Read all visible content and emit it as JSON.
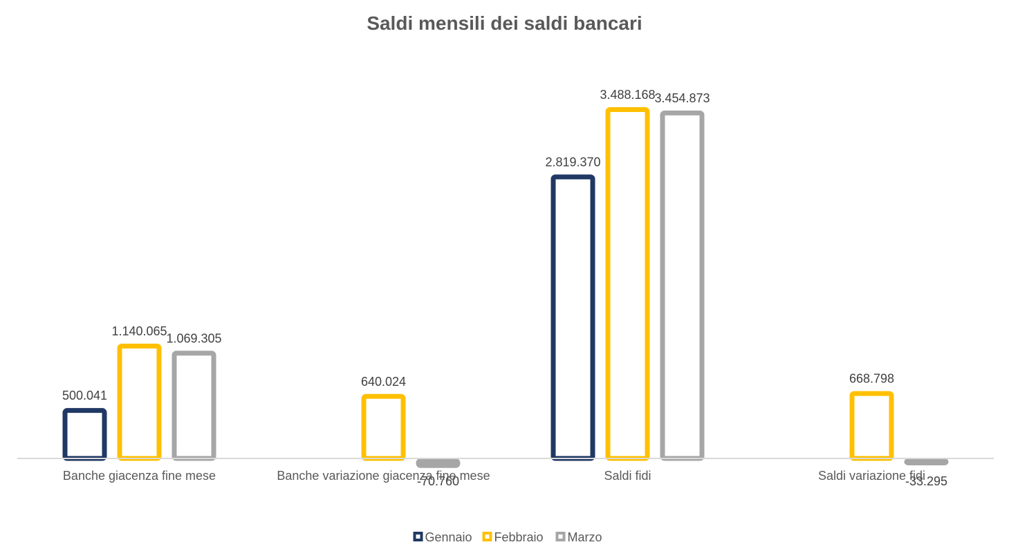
{
  "chart_data": {
    "type": "bar",
    "title": "Saldi mensili dei saldi bancari",
    "categories": [
      "Banche giacenza fine mese",
      "Banche variazione giacenza fine mese",
      "Saldi fidi",
      "Saldi variazione fidi"
    ],
    "series": [
      {
        "name": "Gennaio",
        "color": "#203864",
        "values": [
          500041,
          null,
          2819370,
          null
        ],
        "labels": [
          "500.041",
          null,
          "2.819.370",
          null
        ]
      },
      {
        "name": "Febbraio",
        "color": "#FFC000",
        "values": [
          1140065,
          640024,
          3488168,
          668798
        ],
        "labels": [
          "1.140.065",
          "640.024",
          "3.488.168",
          "668.798"
        ]
      },
      {
        "name": "Marzo",
        "color": "#A6A6A6",
        "values": [
          1069305,
          -70760,
          3454873,
          -33295
        ],
        "labels": [
          "1.069.305",
          "-70.760",
          "3.454.873",
          "-33.295"
        ]
      }
    ],
    "xlabel": "",
    "ylabel": "",
    "ylim": [
      -200000,
      4400000
    ],
    "grid": false,
    "legend_position": "bottom"
  }
}
